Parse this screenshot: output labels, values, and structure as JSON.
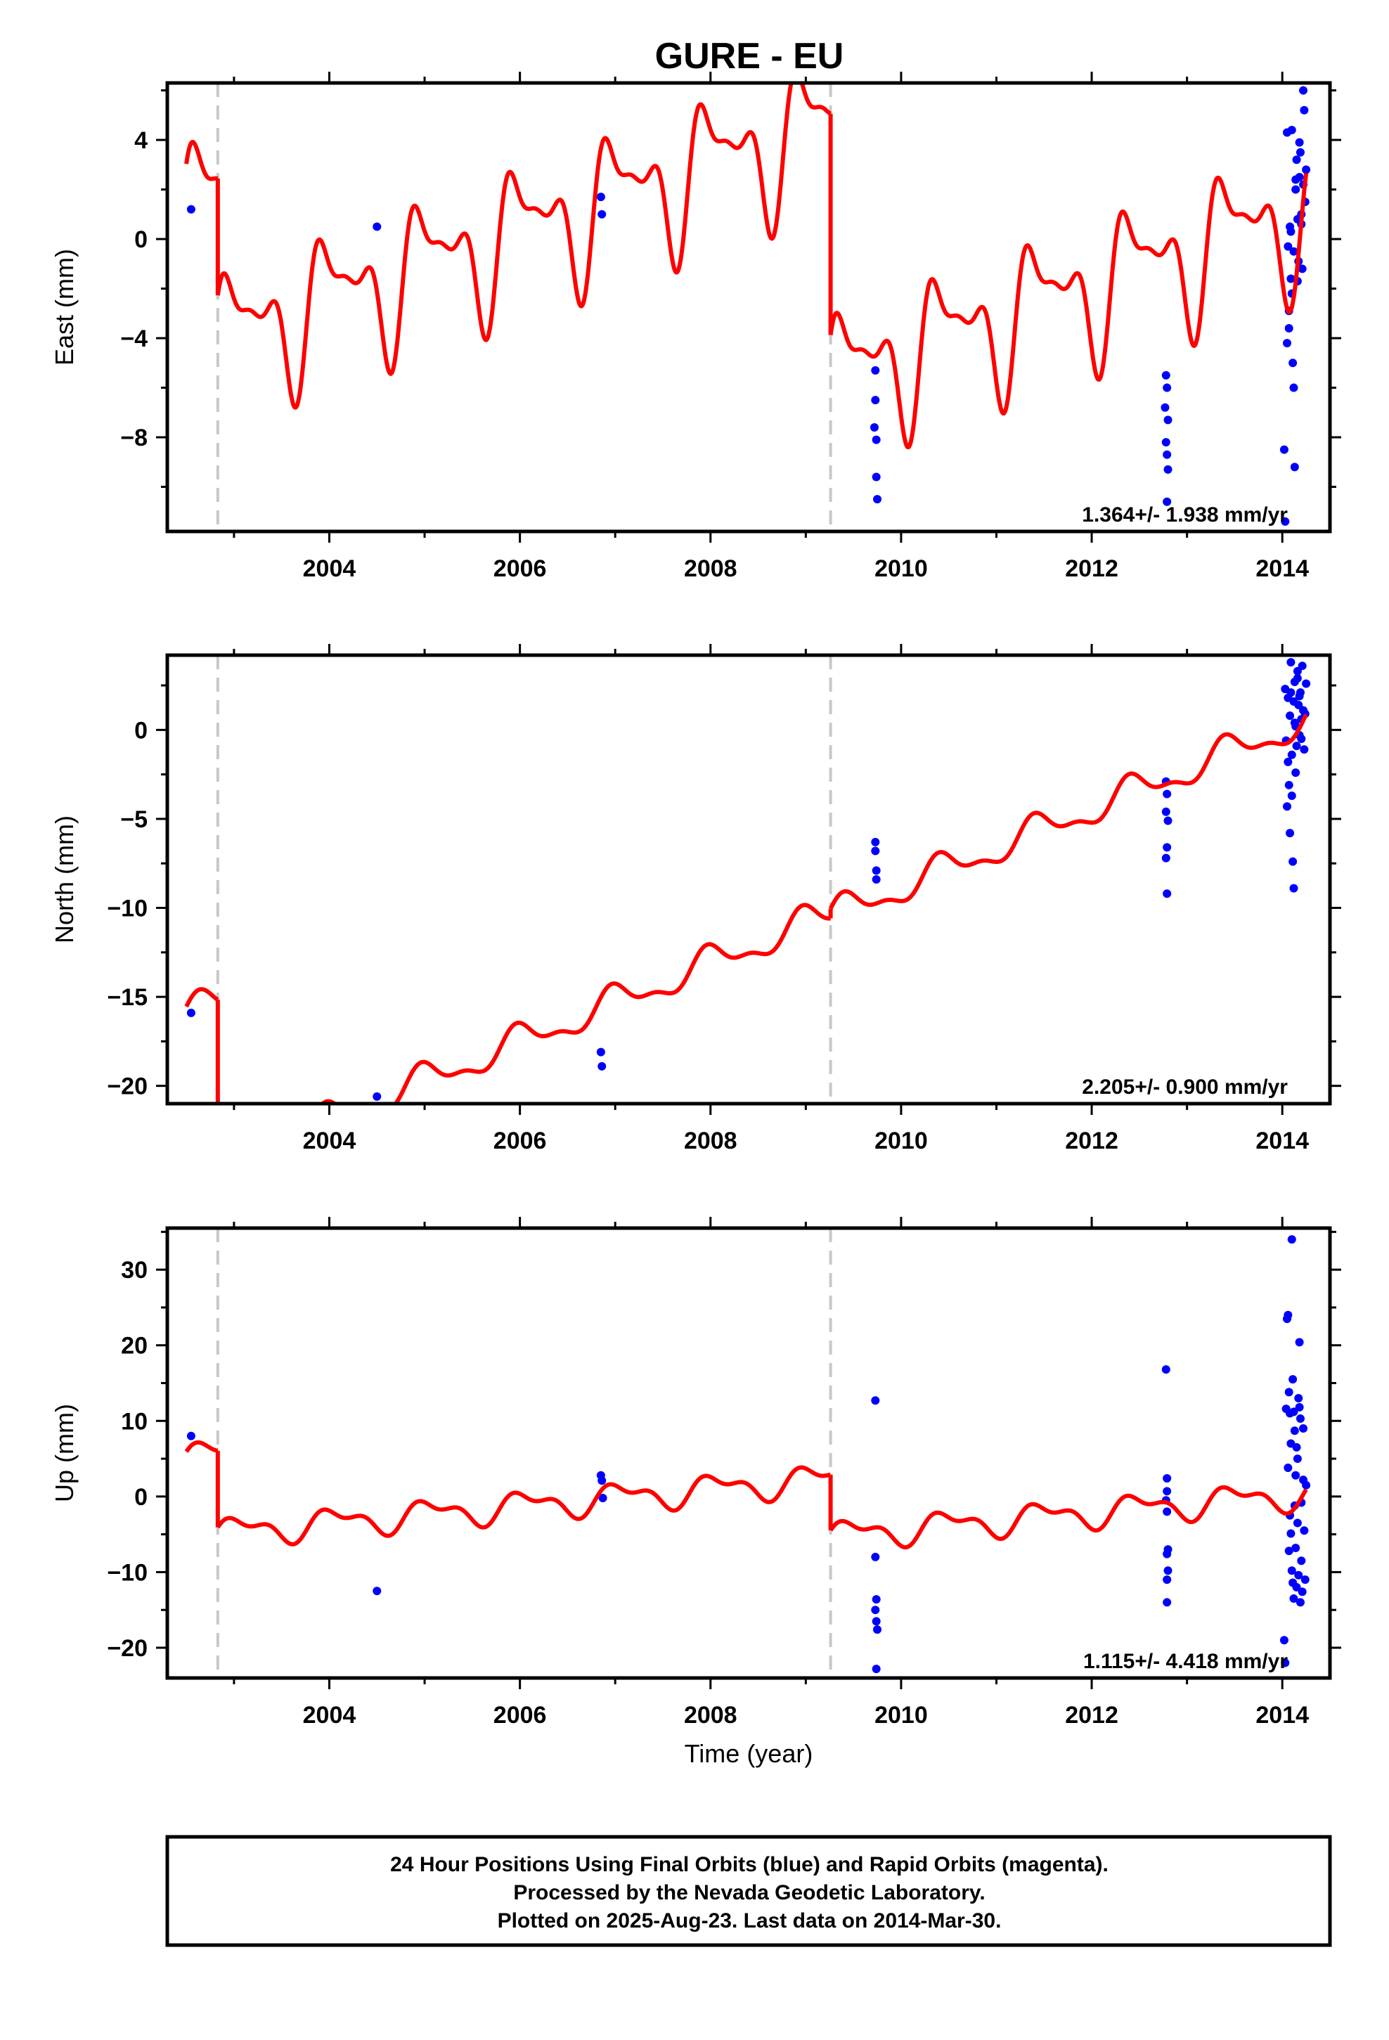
{
  "title": "GURE - EU",
  "footer": {
    "line1": "24 Hour Positions Using Final Orbits (blue) and Rapid Orbits (magenta).",
    "line2": "Processed by the Nevada Geodetic Laboratory.",
    "line3": "Plotted on 2025-Aug-23. Last data on 2014-Mar-30."
  },
  "colors": {
    "model": "#ff0000",
    "final_orbits": "#0000ff",
    "breaks": "#c8c8c8",
    "frame": "#000000"
  },
  "chart_data": [
    {
      "type": "scatter",
      "panel": "east",
      "ylabel": "East (mm)",
      "xlabel": "",
      "xlim": [
        2002.3,
        2014.5
      ],
      "ylim": [
        -11.8,
        6.3
      ],
      "xticks": [
        2004,
        2006,
        2008,
        2010,
        2012,
        2014
      ],
      "yticks": [
        -8,
        -4,
        0,
        4
      ],
      "ytick_labels": [
        "−8",
        "−4",
        "0",
        "4"
      ],
      "breaks": [
        2002.83,
        2009.26
      ],
      "rate": "1.364+/- 1.938 mm/yr",
      "series": [
        {
          "name": "Final Orbits",
          "points": [
            [
              2002.55,
              1.2
            ],
            [
              2004.5,
              0.5
            ],
            [
              2006.85,
              1.7
            ],
            [
              2006.86,
              1.0
            ],
            [
              2009.73,
              -5.3
            ],
            [
              2009.73,
              -6.5
            ],
            [
              2009.72,
              -7.6
            ],
            [
              2009.74,
              -8.1
            ],
            [
              2009.74,
              -9.6
            ],
            [
              2009.75,
              -10.5
            ],
            [
              2012.78,
              -5.5
            ],
            [
              2012.79,
              -6.0
            ],
            [
              2012.77,
              -6.8
            ],
            [
              2012.8,
              -7.3
            ],
            [
              2012.78,
              -8.2
            ],
            [
              2012.79,
              -8.7
            ],
            [
              2012.8,
              -9.3
            ],
            [
              2012.79,
              -10.6
            ],
            [
              2014.02,
              -8.5
            ],
            [
              2014.03,
              -11.4
            ],
            [
              2014.05,
              4.3
            ],
            [
              2014.06,
              -0.3
            ],
            [
              2014.07,
              -2.9
            ],
            [
              2014.08,
              0.5
            ],
            [
              2014.09,
              -1.6
            ],
            [
              2014.1,
              4.4
            ],
            [
              2014.11,
              -5.0
            ],
            [
              2014.12,
              -6.0
            ],
            [
              2014.13,
              -9.2
            ],
            [
              2014.14,
              2.0
            ],
            [
              2014.15,
              3.2
            ],
            [
              2014.16,
              0.8
            ],
            [
              2014.17,
              -0.9
            ],
            [
              2014.18,
              2.5
            ],
            [
              2014.19,
              3.5
            ],
            [
              2014.2,
              0.6
            ],
            [
              2014.21,
              -1.2
            ],
            [
              2014.22,
              6.0
            ],
            [
              2014.23,
              5.2
            ],
            [
              2014.24,
              1.5
            ],
            [
              2014.25,
              2.8
            ],
            [
              2014.12,
              -0.5
            ],
            [
              2014.07,
              -3.6
            ],
            [
              2014.09,
              0.3
            ],
            [
              2014.16,
              -1.7
            ],
            [
              2014.05,
              -4.2
            ],
            [
              2014.2,
              1.0
            ],
            [
              2014.18,
              3.9
            ],
            [
              2014.14,
              2.4
            ],
            [
              2014.22,
              2.2
            ],
            [
              2014.1,
              -2.2
            ]
          ]
        }
      ],
      "model": {
        "name": "Model",
        "segments": [
          {
            "from": 2002.5,
            "to": 2002.83,
            "start": 1.3,
            "slope": 1.364,
            "annual": 1.8,
            "phase": 0.0,
            "semi": 1.6,
            "phase2": 0.7,
            "tri": 0.7,
            "phase3": 1.6
          },
          {
            "from": 2002.83,
            "to": 2009.26,
            "start": -4.0,
            "slope": 1.364,
            "annual": 1.8,
            "phase": 0.0,
            "semi": 1.6,
            "phase2": 0.7,
            "tri": 0.7,
            "phase3": 1.6
          },
          {
            "from": 2009.26,
            "to": 2014.25,
            "start": -5.6,
            "slope": 1.364,
            "annual": 1.8,
            "phase": 0.0,
            "semi": 1.6,
            "phase2": 0.7,
            "tri": 0.7,
            "phase3": 1.6
          }
        ]
      }
    },
    {
      "type": "scatter",
      "panel": "north",
      "ylabel": "North (mm)",
      "xlabel": "",
      "xlim": [
        2002.3,
        2014.5
      ],
      "ylim": [
        -21.0,
        4.2
      ],
      "xticks": [
        2004,
        2006,
        2008,
        2010,
        2012,
        2014
      ],
      "yticks": [
        -20,
        -15,
        -10,
        -5,
        0
      ],
      "ytick_labels": [
        "−20",
        "−15",
        "−10",
        "−5",
        "0"
      ],
      "breaks": [
        2002.83,
        2009.26
      ],
      "rate": "2.205+/- 0.900 mm/yr",
      "series": [
        {
          "name": "Final Orbits",
          "points": [
            [
              2002.55,
              -15.9
            ],
            [
              2004.5,
              -20.6
            ],
            [
              2006.85,
              -18.1
            ],
            [
              2006.86,
              -18.9
            ],
            [
              2009.73,
              -6.3
            ],
            [
              2009.73,
              -6.8
            ],
            [
              2009.74,
              -7.9
            ],
            [
              2009.74,
              -8.4
            ],
            [
              2012.78,
              -2.9
            ],
            [
              2012.79,
              -3.6
            ],
            [
              2012.78,
              -4.6
            ],
            [
              2012.8,
              -5.1
            ],
            [
              2012.79,
              -6.6
            ],
            [
              2012.78,
              -7.2
            ],
            [
              2012.79,
              -9.2
            ],
            [
              2014.03,
              2.3
            ],
            [
              2014.04,
              -0.6
            ],
            [
              2014.05,
              -4.3
            ],
            [
              2014.06,
              1.8
            ],
            [
              2014.07,
              -3.1
            ],
            [
              2014.08,
              -5.8
            ],
            [
              2014.09,
              3.8
            ],
            [
              2014.1,
              -1.4
            ],
            [
              2014.11,
              -7.4
            ],
            [
              2014.12,
              -8.9
            ],
            [
              2014.13,
              2.7
            ],
            [
              2014.14,
              0.2
            ],
            [
              2014.15,
              -0.9
            ],
            [
              2014.16,
              3.3
            ],
            [
              2014.17,
              1.4
            ],
            [
              2014.18,
              -0.3
            ],
            [
              2014.19,
              2.1
            ],
            [
              2014.2,
              0.6
            ],
            [
              2014.21,
              3.6
            ],
            [
              2014.22,
              1.1
            ],
            [
              2014.23,
              -1.1
            ],
            [
              2014.24,
              0.9
            ],
            [
              2014.25,
              2.6
            ],
            [
              2014.06,
              -1.8
            ],
            [
              2014.08,
              0.8
            ],
            [
              2014.1,
              -3.7
            ],
            [
              2014.12,
              1.6
            ],
            [
              2014.14,
              -2.4
            ],
            [
              2014.16,
              2.9
            ],
            [
              2014.18,
              1.9
            ],
            [
              2014.2,
              -0.5
            ],
            [
              2014.13,
              0.4
            ],
            [
              2014.09,
              2.1
            ]
          ]
        }
      ],
      "model": {
        "name": "Model",
        "segments": [
          {
            "from": 2002.5,
            "to": 2002.83,
            "start": -16.0,
            "slope": 2.205,
            "annual": 0.8,
            "phase": 0.5,
            "semi": 0.35,
            "phase2": 0.2,
            "tri": 0.0,
            "phase3": 0.0
          },
          {
            "from": 2002.83,
            "to": 2009.26,
            "start": -24.5,
            "slope": 2.205,
            "annual": 0.8,
            "phase": 0.5,
            "semi": 0.35,
            "phase2": 0.2,
            "tri": 0.0,
            "phase3": 0.0
          },
          {
            "from": 2009.26,
            "to": 2014.25,
            "start": -10.5,
            "slope": 2.205,
            "annual": 0.8,
            "phase": 0.5,
            "semi": 0.35,
            "phase2": 0.2,
            "tri": 0.0,
            "phase3": 0.0
          }
        ]
      }
    },
    {
      "type": "scatter",
      "panel": "up",
      "ylabel": "Up (mm)",
      "xlabel": "Time (year)",
      "xlim": [
        2002.3,
        2014.5
      ],
      "ylim": [
        -24.0,
        35.5
      ],
      "xticks": [
        2004,
        2006,
        2008,
        2010,
        2012,
        2014
      ],
      "yticks": [
        -20,
        -10,
        0,
        10,
        20,
        30
      ],
      "ytick_labels": [
        "−20",
        "−10",
        "0",
        "10",
        "20",
        "30"
      ],
      "breaks": [
        2002.83,
        2009.26
      ],
      "rate": "1.115+/- 4.418 mm/yr",
      "series": [
        {
          "name": "Final Orbits",
          "points": [
            [
              2002.55,
              8.0
            ],
            [
              2004.5,
              -12.5
            ],
            [
              2006.85,
              2.8
            ],
            [
              2006.86,
              2.1
            ],
            [
              2006.87,
              -0.2
            ],
            [
              2009.73,
              12.7
            ],
            [
              2009.73,
              -8.0
            ],
            [
              2009.74,
              -13.6
            ],
            [
              2009.73,
              -15.0
            ],
            [
              2009.74,
              -16.5
            ],
            [
              2009.75,
              -17.6
            ],
            [
              2009.74,
              -22.8
            ],
            [
              2012.78,
              16.8
            ],
            [
              2012.79,
              2.4
            ],
            [
              2012.79,
              0.7
            ],
            [
              2012.78,
              -0.5
            ],
            [
              2012.79,
              -2.0
            ],
            [
              2012.8,
              -7.0
            ],
            [
              2012.79,
              -7.6
            ],
            [
              2012.8,
              -9.8
            ],
            [
              2012.79,
              -11.0
            ],
            [
              2012.79,
              -14.0
            ],
            [
              2014.02,
              -19.0
            ],
            [
              2014.03,
              -22.0
            ],
            [
              2014.05,
              23.5
            ],
            [
              2014.06,
              24.0
            ],
            [
              2014.07,
              13.8
            ],
            [
              2014.08,
              11.0
            ],
            [
              2014.09,
              7.0
            ],
            [
              2014.1,
              34.0
            ],
            [
              2014.11,
              15.5
            ],
            [
              2014.12,
              11.2
            ],
            [
              2014.13,
              -1.2
            ],
            [
              2014.14,
              -6.8
            ],
            [
              2014.15,
              -12.0
            ],
            [
              2014.16,
              5.0
            ],
            [
              2014.17,
              13.0
            ],
            [
              2014.18,
              20.4
            ],
            [
              2014.19,
              10.3
            ],
            [
              2014.2,
              -8.5
            ],
            [
              2014.21,
              -12.6
            ],
            [
              2014.22,
              9.0
            ],
            [
              2014.23,
              -4.5
            ],
            [
              2014.24,
              -11.0
            ],
            [
              2014.25,
              1.5
            ],
            [
              2014.06,
              3.8
            ],
            [
              2014.08,
              -2.5
            ],
            [
              2014.1,
              -9.8
            ],
            [
              2014.12,
              -13.5
            ],
            [
              2014.14,
              2.8
            ],
            [
              2014.16,
              -3.5
            ],
            [
              2014.18,
              11.8
            ],
            [
              2014.2,
              -0.8
            ],
            [
              2014.07,
              -7.2
            ],
            [
              2014.11,
              -11.4
            ],
            [
              2014.15,
              6.5
            ],
            [
              2014.19,
              -14.0
            ],
            [
              2014.22,
              2.2
            ],
            [
              2014.09,
              -4.9
            ],
            [
              2014.17,
              -10.4
            ],
            [
              2014.04,
              11.6
            ],
            [
              2014.13,
              8.7
            ]
          ]
        }
      ],
      "model": {
        "name": "Model",
        "segments": [
          {
            "from": 2002.5,
            "to": 2002.83,
            "start": 5.2,
            "slope": 1.115,
            "annual": 1.6,
            "phase": 0.05,
            "semi": 0.9,
            "phase2": 0.8,
            "tri": 0.0,
            "phase3": 0.0
          },
          {
            "from": 2002.83,
            "to": 2009.26,
            "start": -4.8,
            "slope": 1.115,
            "annual": 1.6,
            "phase": 0.05,
            "semi": 0.9,
            "phase2": 0.8,
            "tri": 0.0,
            "phase3": 0.0
          },
          {
            "from": 2009.26,
            "to": 2014.25,
            "start": -5.2,
            "slope": 1.115,
            "annual": 1.6,
            "phase": 0.05,
            "semi": 0.9,
            "phase2": 0.8,
            "tri": 0.0,
            "phase3": 0.0
          }
        ]
      }
    }
  ]
}
